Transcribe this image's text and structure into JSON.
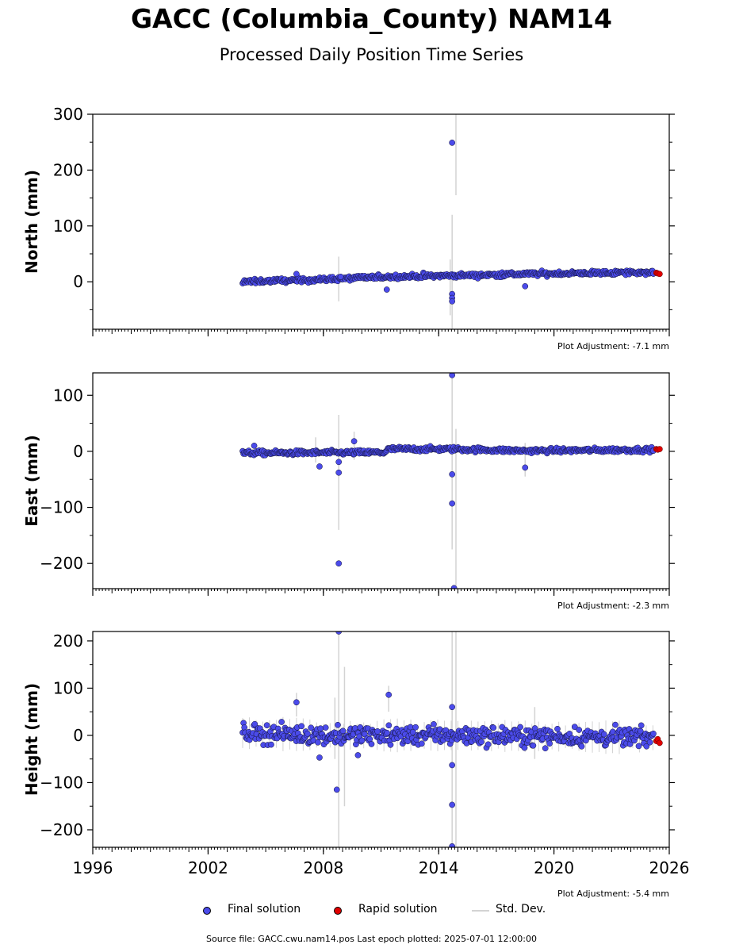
{
  "title": "GACC (Columbia_County) NAM14",
  "subtitle": "Processed Daily Position Time Series",
  "colors": {
    "final": "#4b4bea",
    "rapid": "#e00000",
    "stddev": "#d3d3d3"
  },
  "legend": {
    "final": "Final solution",
    "rapid": "Rapid solution",
    "stddev": "Std. Dev."
  },
  "footer": "Source file: GACC.cwu.nam14.pos  Last epoch plotted: 2025-07-01 12:00:00",
  "chart_data": [
    {
      "type": "scatter",
      "ylabel": "North (mm)",
      "adjustment": "Plot Adjustment: -7.1 mm",
      "xlim": [
        1996,
        2026
      ],
      "ylim": [
        -85,
        300
      ],
      "yticks": [
        0,
        100,
        200,
        300
      ],
      "xticks": [
        1996,
        2002,
        2008,
        2014,
        2020,
        2026
      ],
      "series": [
        {
          "kind": "final",
          "trend": {
            "x": [
              2003.8,
              2008,
              2011.3,
              2014.7,
              2018.5,
              2025.2
            ],
            "y": [
              0,
              4,
              9,
              11,
              14,
              17
            ]
          },
          "scatter": 3,
          "start": 2003.8,
          "end": 2025.2,
          "outliers": [
            [
              2006.6,
              14
            ],
            [
              2008.9,
              9
            ],
            [
              2011.3,
              -14
            ],
            [
              2014.7,
              249
            ],
            [
              2014.7,
              -22
            ],
            [
              2014.7,
              -29
            ],
            [
              2014.7,
              -35
            ],
            [
              2018.5,
              -8
            ]
          ]
        },
        {
          "kind": "rapid",
          "x": [
            2025.33,
            2025.4,
            2025.5
          ],
          "y": [
            16,
            15,
            14
          ]
        },
        {
          "kind": "stddev",
          "bars": [
            [
              2008.8,
              -35,
              45
            ],
            [
              2014.7,
              -85,
              120
            ],
            [
              2014.9,
              155,
              300
            ],
            [
              2014.6,
              -60,
              40
            ]
          ]
        }
      ]
    },
    {
      "type": "scatter",
      "ylabel": "East (mm)",
      "adjustment": "Plot Adjustment: -2.3 mm",
      "xlim": [
        1996,
        2026
      ],
      "ylim": [
        -245,
        140
      ],
      "yticks": [
        -200,
        -100,
        0,
        100
      ],
      "xticks": [
        1996,
        2002,
        2008,
        2014,
        2020,
        2026
      ],
      "series": [
        {
          "kind": "final",
          "trend": {
            "x": [
              2003.8,
              2011.2,
              2011.4,
              2014.7,
              2018.5,
              2025.2
            ],
            "y": [
              -3,
              -2,
              4,
              4,
              1,
              3
            ]
          },
          "scatter": 3,
          "start": 2003.8,
          "end": 2025.2,
          "outliers": [
            [
              2004.4,
              10
            ],
            [
              2007.8,
              -27
            ],
            [
              2008.8,
              -19
            ],
            [
              2008.8,
              -38
            ],
            [
              2008.8,
              -200
            ],
            [
              2009.6,
              18
            ],
            [
              2014.7,
              136
            ],
            [
              2014.7,
              -41
            ],
            [
              2014.7,
              -93
            ],
            [
              2014.8,
              -244
            ],
            [
              2018.5,
              -29
            ]
          ]
        },
        {
          "kind": "rapid",
          "x": [
            2025.33,
            2025.4,
            2025.5
          ],
          "y": [
            4,
            3,
            4
          ]
        },
        {
          "kind": "stddev",
          "bars": [
            [
              2008.8,
              -140,
              65
            ],
            [
              2014.7,
              -175,
              140
            ],
            [
              2014.9,
              -245,
              40
            ],
            [
              2007.6,
              -20,
              25
            ],
            [
              2009.6,
              -15,
              35
            ],
            [
              2018.5,
              -45,
              15
            ]
          ]
        }
      ]
    },
    {
      "type": "scatter",
      "ylabel": "Height (mm)",
      "adjustment": "Plot Adjustment: -5.4 mm",
      "xlim": [
        1996,
        2026
      ],
      "ylim": [
        -237,
        220
      ],
      "yticks": [
        -200,
        -100,
        0,
        100,
        200
      ],
      "xticks": [
        1996,
        2002,
        2008,
        2014,
        2020,
        2026
      ],
      "series": [
        {
          "kind": "final",
          "trend": {
            "x": [
              2003.8,
              2008.5,
              2014.7,
              2025.2
            ],
            "y": [
              5,
              0,
              0,
              -5
            ]
          },
          "scatter": 14,
          "start": 2003.8,
          "end": 2025.2,
          "outliers": [
            [
              2006.6,
              70
            ],
            [
              2007.8,
              -47
            ],
            [
              2008.7,
              -115
            ],
            [
              2008.8,
              220
            ],
            [
              2009.8,
              -42
            ],
            [
              2011.4,
              86
            ],
            [
              2014.7,
              60
            ],
            [
              2014.7,
              -63
            ],
            [
              2014.7,
              -147
            ],
            [
              2014.7,
              -235
            ]
          ]
        },
        {
          "kind": "rapid",
          "x": [
            2025.33,
            2025.4,
            2025.5
          ],
          "y": [
            -12,
            -8,
            -16
          ]
        },
        {
          "kind": "stddev",
          "bars": [
            [
              2008.8,
              -237,
              220
            ],
            [
              2009.1,
              -150,
              145
            ],
            [
              2008.6,
              -50,
              80
            ],
            [
              2014.7,
              -237,
              220
            ],
            [
              2014.9,
              -237,
              220
            ],
            [
              2011.4,
              50,
              105
            ],
            [
              2006.6,
              40,
              90
            ],
            [
              2019.0,
              -50,
              60
            ]
          ]
        }
      ]
    }
  ]
}
